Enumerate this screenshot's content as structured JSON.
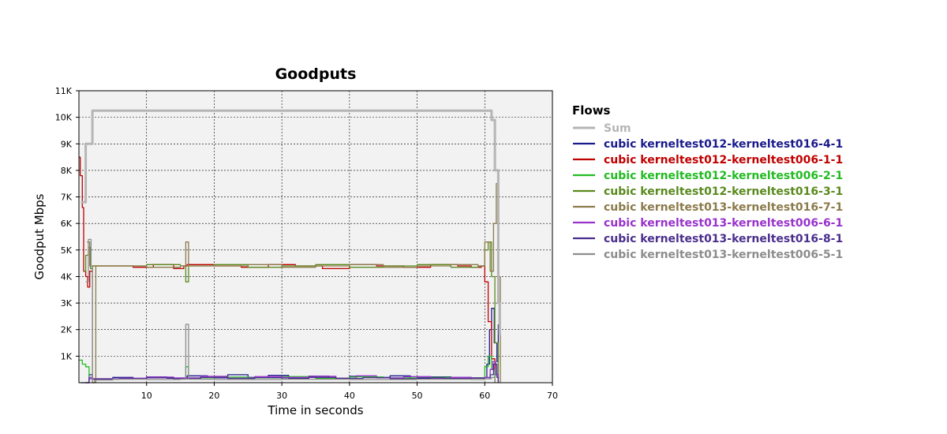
{
  "chart_data": {
    "type": "line",
    "title": "Goodputs",
    "xlabel": "Time in seconds",
    "ylabel": "Goodput Mbps",
    "xlim": [
      0,
      70
    ],
    "ylim": [
      0,
      11000
    ],
    "xticks": [
      10,
      20,
      30,
      40,
      50,
      60,
      70
    ],
    "xtick_labels": [
      "10",
      "20",
      "30",
      "40",
      "50",
      "60",
      "70"
    ],
    "yticks": [
      1000,
      2000,
      3000,
      4000,
      5000,
      6000,
      7000,
      8000,
      9000,
      10000,
      11000
    ],
    "ytick_labels": [
      "1K",
      "2K",
      "3K",
      "4K",
      "5K",
      "6K",
      "7K",
      "8K",
      "9K",
      "10K",
      "11K"
    ],
    "grid": true,
    "plot_background": "#f2f2f2",
    "legend_title": "Flows",
    "legend_position": "right",
    "series": [
      {
        "name": "Sum",
        "color": "#b5b5b5",
        "width": 3,
        "points": [
          [
            0.3,
            6800
          ],
          [
            1,
            9000
          ],
          [
            2,
            10250
          ],
          [
            10,
            10250
          ],
          [
            20,
            10250
          ],
          [
            30,
            10250
          ],
          [
            40,
            10250
          ],
          [
            50,
            10250
          ],
          [
            59,
            10250
          ],
          [
            60.3,
            10250
          ],
          [
            61,
            9900
          ],
          [
            61.5,
            8000
          ],
          [
            62,
            3000
          ],
          [
            62.2,
            1800
          ]
        ]
      },
      {
        "name": "cubic kerneltest012-kerneltest016-4-1",
        "color": "#1a1a8c",
        "width": 1.3,
        "points": [
          [
            0.3,
            0
          ],
          [
            1,
            0
          ],
          [
            1.5,
            300
          ],
          [
            2,
            150
          ],
          [
            5,
            200
          ],
          [
            8,
            160
          ],
          [
            10,
            220
          ],
          [
            13,
            170
          ],
          [
            16,
            260
          ],
          [
            19,
            180
          ],
          [
            22,
            300
          ],
          [
            25,
            200
          ],
          [
            28,
            280
          ],
          [
            31,
            180
          ],
          [
            34,
            250
          ],
          [
            37,
            170
          ],
          [
            40,
            240
          ],
          [
            43,
            200
          ],
          [
            46,
            260
          ],
          [
            49,
            170
          ],
          [
            52,
            220
          ],
          [
            55,
            200
          ],
          [
            58,
            180
          ],
          [
            60,
            200
          ],
          [
            60.3,
            700
          ],
          [
            60.7,
            2000
          ],
          [
            61,
            2800
          ],
          [
            61.4,
            1500
          ],
          [
            61.8,
            800
          ],
          [
            62,
            2200
          ]
        ]
      },
      {
        "name": "cubic kerneltest012-kerneltest006-1-1",
        "color": "#c00000",
        "width": 1.3,
        "points": [
          [
            0,
            8500
          ],
          [
            0.2,
            7800
          ],
          [
            0.5,
            6600
          ],
          [
            0.7,
            4200
          ],
          [
            1,
            4000
          ],
          [
            1.3,
            3600
          ],
          [
            1.6,
            4200
          ],
          [
            2,
            4400
          ],
          [
            5,
            4400
          ],
          [
            8,
            4350
          ],
          [
            11,
            4450
          ],
          [
            14,
            4300
          ],
          [
            15.5,
            4400
          ],
          [
            16,
            4450
          ],
          [
            20,
            4400
          ],
          [
            24,
            4350
          ],
          [
            28,
            4450
          ],
          [
            32,
            4400
          ],
          [
            36,
            4300
          ],
          [
            40,
            4450
          ],
          [
            44,
            4400
          ],
          [
            48,
            4350
          ],
          [
            52,
            4450
          ],
          [
            56,
            4400
          ],
          [
            58,
            4350
          ],
          [
            59.5,
            4400
          ],
          [
            60,
            3800
          ],
          [
            60.5,
            2300
          ],
          [
            61,
            900
          ],
          [
            61.5,
            0
          ]
        ]
      },
      {
        "name": "cubic kerneltest012-kerneltest006-2-1",
        "color": "#22bb22",
        "width": 1.3,
        "points": [
          [
            0,
            850
          ],
          [
            0.5,
            700
          ],
          [
            1,
            600
          ],
          [
            1.5,
            200
          ],
          [
            2,
            150
          ],
          [
            6,
            160
          ],
          [
            10,
            200
          ],
          [
            14,
            170
          ],
          [
            15.8,
            600
          ],
          [
            16.2,
            180
          ],
          [
            20,
            210
          ],
          [
            25,
            180
          ],
          [
            30,
            230
          ],
          [
            35,
            170
          ],
          [
            40,
            220
          ],
          [
            45,
            180
          ],
          [
            50,
            200
          ],
          [
            55,
            170
          ],
          [
            58,
            190
          ],
          [
            60,
            600
          ],
          [
            60.5,
            1000
          ],
          [
            61,
            500
          ],
          [
            61.5,
            0
          ]
        ]
      },
      {
        "name": "cubic kerneltest012-kerneltest016-3-1",
        "color": "#5a8a1e",
        "width": 1.3,
        "points": [
          [
            0.8,
            4200
          ],
          [
            1,
            4800
          ],
          [
            1.4,
            5100
          ],
          [
            1.7,
            4300
          ],
          [
            2,
            4400
          ],
          [
            6,
            4400
          ],
          [
            10,
            4450
          ],
          [
            15,
            4400
          ],
          [
            15.8,
            3800
          ],
          [
            16.2,
            4400
          ],
          [
            20,
            4450
          ],
          [
            25,
            4350
          ],
          [
            30,
            4400
          ],
          [
            35,
            4450
          ],
          [
            40,
            4350
          ],
          [
            45,
            4400
          ],
          [
            50,
            4450
          ],
          [
            55,
            4350
          ],
          [
            59,
            4400
          ],
          [
            60,
            5000
          ],
          [
            60.5,
            5300
          ],
          [
            61,
            4000
          ],
          [
            61.5,
            1500
          ],
          [
            62,
            0
          ]
        ]
      },
      {
        "name": "cubic kerneltest013-kerneltest016-7-1",
        "color": "#8b7a4a",
        "width": 1.3,
        "points": [
          [
            1.2,
            5300
          ],
          [
            1.6,
            4400
          ],
          [
            2,
            0
          ],
          [
            2.5,
            4400
          ],
          [
            6,
            4400
          ],
          [
            10,
            4350
          ],
          [
            15,
            4400
          ],
          [
            15.8,
            5300
          ],
          [
            16.2,
            4400
          ],
          [
            20,
            4400
          ],
          [
            25,
            4450
          ],
          [
            30,
            4350
          ],
          [
            35,
            4400
          ],
          [
            40,
            4450
          ],
          [
            45,
            4350
          ],
          [
            50,
            4400
          ],
          [
            55,
            4450
          ],
          [
            59,
            4400
          ],
          [
            60,
            5300
          ],
          [
            60.8,
            4200
          ],
          [
            61.3,
            6000
          ],
          [
            61.7,
            7500
          ],
          [
            62,
            4000
          ],
          [
            62.3,
            0
          ]
        ]
      },
      {
        "name": "cubic kerneltest013-kerneltest006-6-1",
        "color": "#9933cc",
        "width": 1.3,
        "points": [
          [
            1,
            0
          ],
          [
            1.5,
            200
          ],
          [
            2,
            150
          ],
          [
            6,
            170
          ],
          [
            10,
            210
          ],
          [
            14,
            180
          ],
          [
            18,
            240
          ],
          [
            22,
            170
          ],
          [
            26,
            230
          ],
          [
            30,
            200
          ],
          [
            34,
            240
          ],
          [
            38,
            170
          ],
          [
            41,
            260
          ],
          [
            44,
            180
          ],
          [
            48,
            230
          ],
          [
            52,
            170
          ],
          [
            55,
            200
          ],
          [
            58,
            180
          ],
          [
            60,
            200
          ],
          [
            60.8,
            500
          ],
          [
            61.2,
            800
          ],
          [
            61.6,
            300
          ],
          [
            62,
            0
          ]
        ]
      },
      {
        "name": "cubic kerneltest013-kerneltest016-8-1",
        "color": "#4a2e8c",
        "width": 1.3,
        "points": [
          [
            1,
            0
          ],
          [
            1.5,
            150
          ],
          [
            2,
            130
          ],
          [
            6,
            150
          ],
          [
            10,
            180
          ],
          [
            14,
            150
          ],
          [
            18,
            200
          ],
          [
            22,
            160
          ],
          [
            26,
            190
          ],
          [
            30,
            150
          ],
          [
            34,
            200
          ],
          [
            38,
            160
          ],
          [
            42,
            190
          ],
          [
            46,
            150
          ],
          [
            50,
            180
          ],
          [
            54,
            160
          ],
          [
            58,
            170
          ],
          [
            60,
            150
          ],
          [
            60.8,
            300
          ],
          [
            61.3,
            700
          ],
          [
            61.8,
            200
          ],
          [
            62,
            0
          ]
        ]
      },
      {
        "name": "cubic kerneltest013-kerneltest006-5-1",
        "color": "#8c8c8c",
        "width": 1.3,
        "points": [
          [
            1,
            3800
          ],
          [
            1.4,
            5400
          ],
          [
            1.8,
            4400
          ],
          [
            2,
            0
          ],
          [
            2.3,
            100
          ],
          [
            5,
            130
          ],
          [
            10,
            120
          ],
          [
            15,
            130
          ],
          [
            15.8,
            2200
          ],
          [
            16.2,
            130
          ],
          [
            20,
            120
          ],
          [
            30,
            130
          ],
          [
            40,
            120
          ],
          [
            50,
            130
          ],
          [
            58,
            120
          ],
          [
            60,
            150
          ],
          [
            61,
            200
          ],
          [
            61.5,
            0
          ]
        ]
      }
    ]
  }
}
